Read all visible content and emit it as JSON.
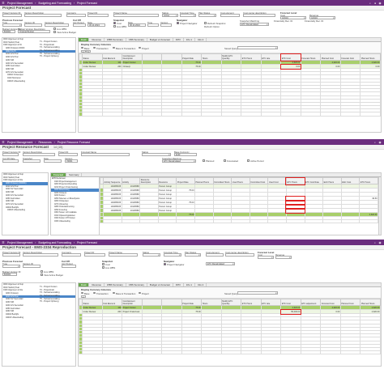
{
  "app": {
    "breadcrumbs": [
      "Project Management",
      "Budgeting and Forecasting",
      "Project Forecast"
    ],
    "breadcrumbs2": [
      "Project Management",
      "Resources",
      "Project Resource Forecast"
    ]
  },
  "s1": {
    "title": "Project Forecast",
    "fields": {
      "project_version_id_lbl": "Project Version ID",
      "version_desc_lbl": "Version Description",
      "company_lbl": "Company",
      "project_id_lbl": "Project ID",
      "project_name_lbl": "Project Name",
      "status_lbl": "Status",
      "forecast_type_lbl": "Forecast Type",
      "plan_status_lbl": "Plan Status",
      "cost_element_lbl": "Cost element",
      "cost_center_desc_lbl": "Cost center description",
      "forecast_level_lbl": "Forecast Level",
      "cost_lbl": "Cost",
      "revenue_lbl": "Revenue",
      "status_val": "Active",
      "activity_val": "Activity",
      "previous_forecast_lbl": "Previous Forecast",
      "type_lbl": "Type",
      "version_id_lbl": "Version ID",
      "version_desc2_lbl": "Version Description",
      "cut_off_lbl": "Cut Off",
      "acc_period_lbl": "Acc Period",
      "date_lbl": "Date",
      "snapshot_lbl": "Snapshot",
      "snap_date_lbl": "Date",
      "time_lbl": "Time",
      "version_lbl": "Version",
      "navigator_lbl": "Navigator",
      "project_navigator": "Project Navigator",
      "refresh_snapshot": "Refresh Snapshot",
      "refresh_option_lbl": "Refresh Option",
      "snapshot_matching_lbl": "Snapshot Matching",
      "etc_recalculated": "ETC Recalculated",
      "financially_rec": "Financially Rec. ID",
      "budget_version_lbl": "Budget Version ID",
      "budget_desc_lbl": "Budget Version Description",
      "budget_val": "BUD01",
      "budget_desc_val": "Original Budget",
      "live_wbs": "Live WBS",
      "view_active_budget": "View Active Budget",
      "date_val": "30.11.2024",
      "date2_val": "30.11.2024"
    },
    "tree": [
      "0000 Algemeen & Sup",
      "0010 Steltvrij Teat",
      "0100 Algemeen & St",
      "0200 Ontwerp (D000",
      "0202 FG Pr",
      "0210 GS Proc",
      "0220 GS Proc",
      "0230 SM",
      "0240 GS Secundair",
      "0250 Gebruiken",
      "0260 SM",
      "0270 GS Secundair",
      "04002 Ontwerpen",
      "0410 Monteren",
      "04003 Uitleesleding"
    ],
    "tree2": [
      "T1 - Project Kosten",
      "T2 - Projectmatt",
      "T3 - Subsamenvatting",
      "T4 - Subsamenvatting",
      "T5 - Subsamenvatting",
      "T6 - Project Opbreng"
    ],
    "tabs": [
      "Cost",
      "Revenue",
      "WBS Summary",
      "CBS Summary",
      "Budget vs Forecast",
      "FPO",
      "Info 1",
      "Info 2"
    ],
    "display_currency_lbl": "Display Currency Columns",
    "base": "Base",
    "transaction": "Transaction",
    "base_and_transaction": "Base & Transaction",
    "project": "Project",
    "saved_query_lbl": "Saved Query",
    "columns": [
      "",
      "Status",
      "Cost Element",
      "Cost Element Description",
      "",
      "",
      "Project Rate",
      "Hours",
      "Modify ETC Quantity",
      "ETC Hours",
      "ETC rate",
      "ETC Cost",
      "Forecast Hours",
      "Planned Cost",
      "Forecast Cost",
      "Planned Hours"
    ],
    "rows": [
      [
        "",
        "Under Review",
        "100",
        "Project Kosten",
        "",
        "",
        "75.00",
        "",
        "",
        "",
        "",
        "4,620.00",
        "",
        "4,620.00",
        "",
        "4,620.00"
      ],
      [
        "",
        "Under Review",
        "200",
        "Ontwerp",
        "",
        "",
        "75.00",
        "",
        "",
        "",
        "",
        "0.00",
        "",
        "0.00",
        "",
        "0.00"
      ]
    ]
  },
  "s2": {
    "title": "Project Resource Forecast",
    "record": "14 (15)",
    "fields": {
      "project_version_id_lbl": "Project Version ID",
      "version_desc_lbl": "Version Description",
      "project_id_lbl": "Project ID",
      "forecast_name_lbl": "Forecast Name",
      "status_lbl": "Status",
      "base_currency_lbl": "Base Currency",
      "currency_val": "EUR",
      "cut_off_date_lbl": "Cut Off Date",
      "snapshot_lbl": "Snapshot",
      "snap_date_lbl": "Date",
      "planned": "Planned",
      "forecasted": "Forecasted",
      "active_period": "Active Period",
      "snapshot_matching_lbl": "Snapshot Matching",
      "etc_recalculated": "ETC Recalculated",
      "version_lbl": "Version",
      "v_val": "V0001"
    },
    "tree": [
      "0000 Algemeen & Sup",
      "0010 Steltvrij Teat",
      "0100 Algemeen & Stu",
      "0200 Ontwerp (D0001)",
      "0210 GS Proc",
      "0220 SV Secundair",
      "0230 SM",
      "0240 GS Secundair",
      "0250 Gebruiken",
      "0260 SM",
      "0270 GS Secundair",
      "04002 Bedrijfs",
      "04003 Uitleesleding"
    ],
    "tree_mid": [
      "EPB Redamaat",
      "0100 Projectmanagement",
      "0200 Projectvoorbereiding",
      "0210 Project Onderzoeking",
      "0220 Afstemming",
      "0230 Ontwerp",
      "0240 Kosten",
      "0250 Tekenen en Bouwfysica",
      "0260 Ontwerpen",
      "0270 Uitvoering",
      "0280 Onderaanneming",
      "0290 Invoering",
      "0300 Testen v/d Installatie",
      "0310 Opleveringskosten",
      "0320 Kosten OH Kosten",
      "0330 Uitleesleding"
    ],
    "tabs": [
      "Forecast",
      "Summary"
    ],
    "columns": [
      "",
      "Activity Sequence",
      "Activity",
      "Resource Description",
      "Resource",
      "Project Rate",
      "Planned Hours",
      "Committed Hours",
      "Used Hours",
      "Committed Cost",
      "Used Cost",
      "ETC Hours",
      "ETC Cost Rate",
      "EAC Hours",
      "EAC Cost",
      "ETC Hours"
    ],
    "rows": [
      [
        "",
        "100485335",
        "10116588",
        "",
        "Person Group",
        "",
        "",
        "",
        "",
        "",
        "",
        "",
        "",
        "",
        "",
        ""
      ],
      [
        "",
        "100485335",
        "10116588",
        "",
        "Person Group",
        "75.00",
        "",
        "",
        "",
        "",
        "",
        "",
        "",
        "",
        "",
        ""
      ],
      [
        "",
        "100485335",
        "10116588",
        "",
        "Person Group",
        "",
        "",
        "",
        "",
        "",
        "",
        "",
        "",
        "",
        "",
        ""
      ],
      [
        "",
        "100485335",
        "10116589",
        "",
        "Person Group",
        "",
        "",
        "",
        "",
        "",
        "",
        "",
        "",
        "",
        "",
        "49.50"
      ],
      [
        "",
        "100485335",
        "10116589",
        "",
        "Person Group",
        "75.00",
        "",
        "",
        "",
        "",
        "",
        "",
        "",
        "",
        "",
        ""
      ],
      [
        "",
        "100485335",
        "10116589",
        "",
        "Person Group",
        "",
        "",
        "",
        "",
        "",
        "",
        "",
        "",
        "",
        "",
        ""
      ],
      [
        "",
        "100485335",
        "10116589",
        "",
        "Person Group",
        "",
        "",
        "",
        "",
        "",
        "",
        "",
        "",
        "",
        "",
        ""
      ],
      [
        "",
        "",
        "",
        "",
        "",
        "75.00",
        "",
        "",
        "",
        "",
        "",
        "",
        "",
        "",
        "",
        "4,620.00"
      ]
    ]
  },
  "s3": {
    "title": "Project Forecast - EMS-2334 Reproduction",
    "fields": {
      "project_version_id_lbl": "Project Version ID",
      "version_desc_lbl": "Version Description",
      "company_lbl": "Company",
      "project_id_lbl": "Project ID",
      "project_name_lbl": "Project Name",
      "status_lbl": "Status",
      "forecast_type_lbl": "Forecast Type",
      "plan_status_lbl": "Plan Status",
      "cost_element_lbl": "Cost element",
      "cost_center_desc_lbl": "Cost center description",
      "forecast_level_lbl": "Forecast Level",
      "cost_lbl": "Cost",
      "revenue_lbl": "Revenue",
      "previous_forecast_lbl": "Previous Forecast",
      "type_lbl": "Type",
      "version_id_lbl": "Version ID",
      "cut_off_lbl": "Cut Off",
      "acc_period_lbl": "Acc Period",
      "snapshot_lbl": "Snapshot",
      "navigator_lbl": "Navigator",
      "project_navigator": "Project Navigator",
      "budget_version_lbl": "Budget Version ID",
      "budget_val": "BUD01",
      "live_wbs": "Live WBS",
      "view_active_budget": "View Active Budget",
      "etc_recalculated": "ETC Recalculated"
    },
    "tree": [
      "0000 Algemeen & Sup",
      "0010 Steltvrij Teat",
      "0100 Algemeen & Stu",
      "0200 Ontwerp",
      "0210 GS Proc",
      "0220 SV Secundair",
      "0230 SM",
      "0240 GS Secundair",
      "0250 Gebruiken",
      "0260 SM",
      "04002 Bedrijfs",
      "04003 Uitleesleding"
    ],
    "tree2": [
      "T1 - Project Kosten",
      "T2 - Projectmatt",
      "T3 - Subsamenvatting",
      "T4 - Subsamenvatting",
      "T5 - Subsamenvatting",
      "T6 - Project Opbreng"
    ],
    "tabs": [
      "Cost",
      "Revenue",
      "WBS Summary",
      "CBS Summary",
      "Budget vs Forecast",
      "FPO",
      "Info 1",
      "Info 2"
    ],
    "display_currency_lbl": "Display Currency Columns",
    "base": "Base",
    "transaction": "Transaction",
    "base_and_transaction": "Base & Transaction",
    "project": "Project",
    "saved_query_lbl": "Saved Query",
    "columns": [
      "",
      "Status",
      "Cost Element",
      "Cost Element Description",
      "",
      "",
      "Project Rate",
      "Hours",
      "Modify ETC Quantity",
      "ETC Hours",
      "ETC rate",
      "ETC Cost",
      "ETC adjustment",
      "Forecast Cost",
      "Planned Cost",
      "Planned Hours"
    ],
    "rows": [
      [
        "",
        "Under Review",
        "100",
        "Project Kosten",
        "",
        "",
        "75.00",
        "",
        "",
        "",
        "",
        "4,620.00",
        "",
        "4,620.00",
        "",
        "4,620.00"
      ],
      [
        "",
        "Under Review",
        "200",
        "Project Onderzoek",
        "",
        "",
        "75.00",
        "",
        "",
        "",
        "",
        "55,000.00",
        "",
        "0.00",
        "",
        "4,620.00"
      ]
    ]
  },
  "colors": {
    "appbar": "#6b2d7e",
    "green": "#a8cf6a",
    "highlight": "#e02020",
    "tree_select": "#4a86c8"
  }
}
